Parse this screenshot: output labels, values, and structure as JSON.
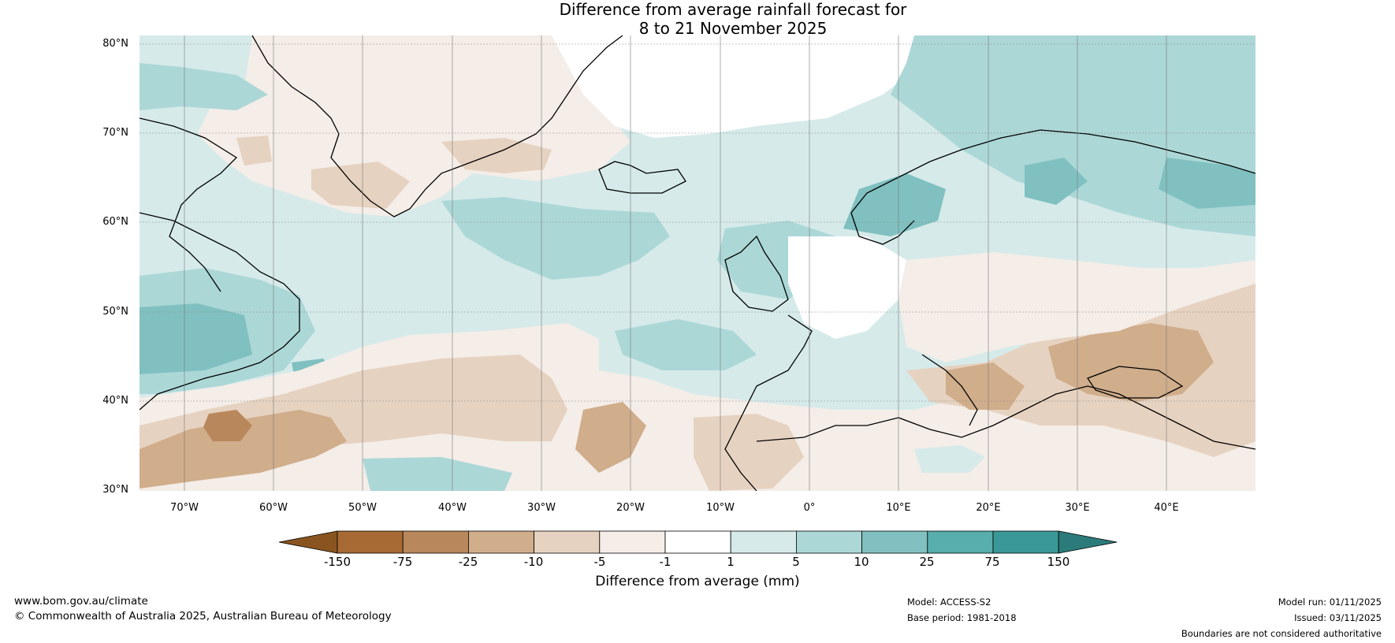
{
  "title": {
    "line1": "Difference from average rainfall forecast for",
    "line2": "8 to 21 November 2025"
  },
  "map": {
    "lat_labels": [
      "80°N",
      "70°N",
      "60°N",
      "50°N",
      "40°N",
      "30°N"
    ],
    "lon_labels": [
      "70°W",
      "60°W",
      "50°W",
      "40°W",
      "30°W",
      "20°W",
      "10°W",
      "0°",
      "10°E",
      "20°E",
      "30°E",
      "40°E"
    ],
    "extent": {
      "lon": [
        -75,
        50
      ],
      "lat": [
        30,
        81
      ]
    }
  },
  "colorbar": {
    "ticks": [
      "-150",
      "-75",
      "-25",
      "-10",
      "-5",
      "-1",
      "1",
      "5",
      "10",
      "25",
      "75",
      "150"
    ],
    "colors": [
      "#a86a34",
      "#b8875b",
      "#d0ad8b",
      "#e6d2c0",
      "#f4ede8",
      "#ffffff",
      "#d6eaea",
      "#acd7d7",
      "#80c0c0",
      "#58adad",
      "#3a9898"
    ],
    "under_color": "#8a5420",
    "over_color": "#2c7b7b",
    "label": "Difference from average (mm)"
  },
  "footer": {
    "website": "www.bom.gov.au/climate",
    "copyright": "© Commonwealth of Australia 2025, Australian Bureau of Meteorology",
    "model": "Model: ACCESS-S2",
    "base_period": "Base period: 1981-2018",
    "model_run": "Model run: 01/11/2025",
    "issued": "Issued: 03/11/2025",
    "disclaimer": "Boundaries are not considered authoritative"
  }
}
